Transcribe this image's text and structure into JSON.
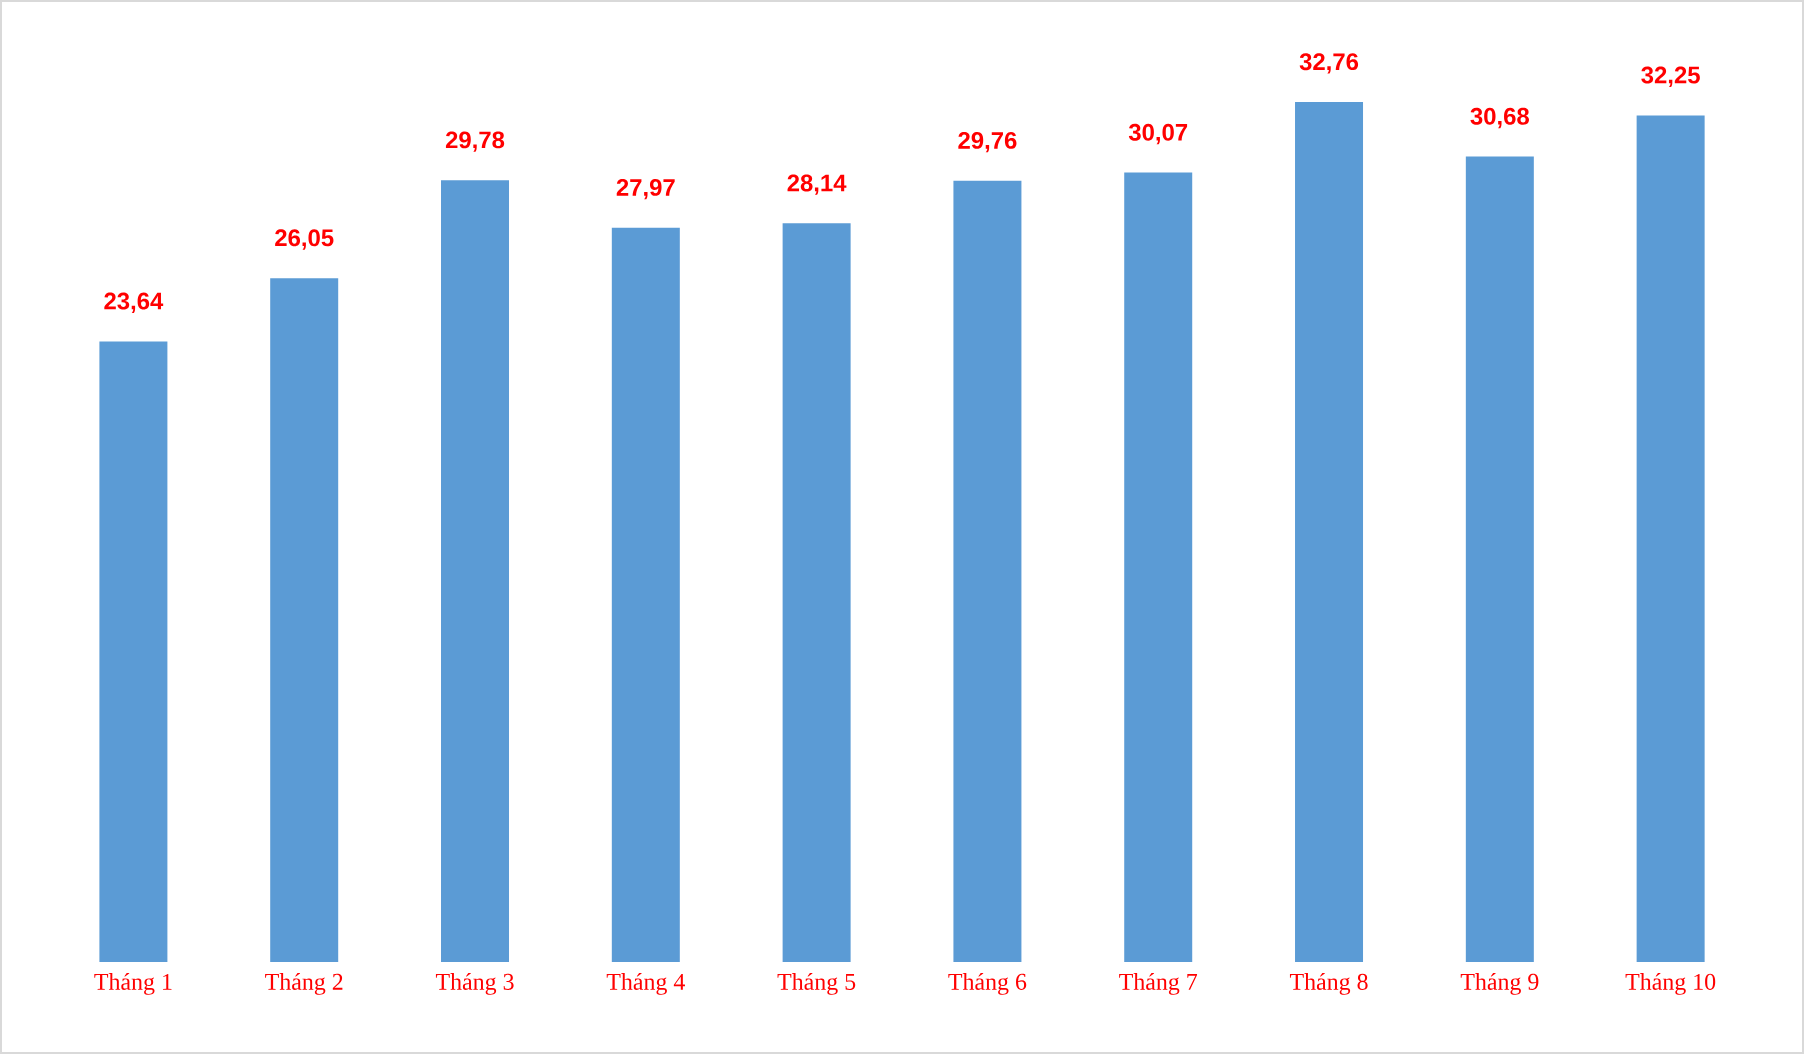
{
  "chart_data": {
    "type": "bar",
    "categories": [
      "Tháng 1",
      "Tháng 2",
      "Tháng 3",
      "Tháng 4",
      "Tháng 5",
      "Tháng 6",
      "Tháng 7",
      "Tháng 8",
      "Tháng 9",
      "Tháng 10"
    ],
    "values": [
      23.64,
      26.05,
      29.78,
      27.97,
      28.14,
      29.76,
      30.07,
      32.76,
      30.68,
      32.25
    ],
    "value_labels": [
      "23,64",
      "26,05",
      "29,78",
      "27,97",
      "28,14",
      "29,76",
      "30,07",
      "32,76",
      "30,68",
      "32,25"
    ],
    "color": "#5b9bd5"
  }
}
